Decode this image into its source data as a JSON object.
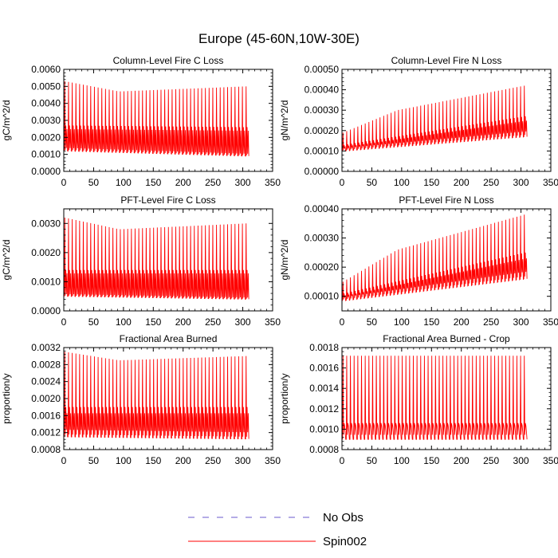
{
  "figure": {
    "title": "Europe (45-60N,10W-30E)"
  },
  "legend": {
    "entries": [
      {
        "label": "No Obs",
        "color": "#6a5acd",
        "style": "dashed"
      },
      {
        "label": "Spin002",
        "color": "#ff0000",
        "style": "solid"
      }
    ]
  },
  "chart_data": [
    {
      "type": "line",
      "title": "Column-Level Fire C Loss",
      "xlabel": "",
      "ylabel": "gC/m^2/d",
      "xlim": [
        0,
        350
      ],
      "ylim": [
        0,
        0.006
      ],
      "x_ticks": [
        0,
        50,
        100,
        150,
        200,
        250,
        300,
        350
      ],
      "y_ticks": [
        0.0,
        0.001,
        0.002,
        0.003,
        0.004,
        0.005,
        0.006
      ],
      "y_tick_labels": [
        "0.0000",
        "0.0010",
        "0.0020",
        "0.0030",
        "0.0040",
        "0.0050",
        "0.0060"
      ],
      "series": [
        {
          "name": "Spin002",
          "color": "#ff0000",
          "period": 6.2,
          "x_start": 1,
          "x_end": 306,
          "peak_start": 0.0053,
          "peak_mid": 0.0047,
          "peak_end": 0.005,
          "mid_start": 0.0027,
          "mid_end": 0.0026,
          "base_start": 0.0012,
          "base_end": 0.0009
        }
      ]
    },
    {
      "type": "line",
      "title": "Column-Level Fire N Loss",
      "xlabel": "",
      "ylabel": "gN/m^2/d",
      "xlim": [
        0,
        350
      ],
      "ylim": [
        0,
        0.0005
      ],
      "x_ticks": [
        0,
        50,
        100,
        150,
        200,
        250,
        300,
        350
      ],
      "y_ticks": [
        0.0,
        0.0001,
        0.0002,
        0.0003,
        0.0004,
        0.0005
      ],
      "y_tick_labels": [
        "0.00000",
        "0.00010",
        "0.00020",
        "0.00030",
        "0.00040",
        "0.00050"
      ],
      "series": [
        {
          "name": "Spin002",
          "color": "#ff0000",
          "period": 6.2,
          "x_start": 1,
          "x_end": 306,
          "peak_start": 0.00019,
          "peak_mid": 0.0003,
          "peak_end": 0.00042,
          "mid_start": 0.00013,
          "mid_end": 0.00027,
          "base_start": 0.0001,
          "base_end": 0.00017
        }
      ]
    },
    {
      "type": "line",
      "title": "PFT-Level Fire C Loss",
      "xlabel": "",
      "ylabel": "gC/m^2/d",
      "xlim": [
        0,
        350
      ],
      "ylim": [
        0,
        0.0035
      ],
      "x_ticks": [
        0,
        50,
        100,
        150,
        200,
        250,
        300,
        350
      ],
      "y_ticks": [
        0.0,
        0.001,
        0.002,
        0.003
      ],
      "y_tick_labels": [
        "0.0000",
        "0.0010",
        "0.0020",
        "0.0030"
      ],
      "series": [
        {
          "name": "Spin002",
          "color": "#ff0000",
          "period": 6.2,
          "x_start": 1,
          "x_end": 306,
          "peak_start": 0.0032,
          "peak_mid": 0.0028,
          "peak_end": 0.003,
          "mid_start": 0.0014,
          "mid_end": 0.0014,
          "base_start": 0.0005,
          "base_end": 0.0004
        }
      ]
    },
    {
      "type": "line",
      "title": "PFT-Level Fire N Loss",
      "xlabel": "",
      "ylabel": "gN/m^2/d",
      "xlim": [
        0,
        350
      ],
      "ylim": [
        5e-05,
        0.0004
      ],
      "x_ticks": [
        0,
        50,
        100,
        150,
        200,
        250,
        300,
        350
      ],
      "y_ticks": [
        0.0001,
        0.0002,
        0.0003,
        0.0004
      ],
      "y_tick_labels": [
        "0.00010",
        "0.00020",
        "0.00030",
        "0.00040"
      ],
      "series": [
        {
          "name": "Spin002",
          "color": "#ff0000",
          "period": 6.2,
          "x_start": 1,
          "x_end": 306,
          "peak_start": 0.00015,
          "peak_mid": 0.00026,
          "peak_end": 0.00038,
          "mid_start": 0.00011,
          "mid_end": 0.00025,
          "base_start": 8.5e-05,
          "base_end": 0.00016
        }
      ]
    },
    {
      "type": "line",
      "title": "Fractional Area Burned",
      "xlabel": "",
      "ylabel": "proportion/y",
      "xlim": [
        0,
        350
      ],
      "ylim": [
        0.0008,
        0.0032
      ],
      "x_ticks": [
        0,
        50,
        100,
        150,
        200,
        250,
        300,
        350
      ],
      "y_ticks": [
        0.0008,
        0.0012,
        0.0016,
        0.002,
        0.0024,
        0.0028,
        0.0032
      ],
      "y_tick_labels": [
        "0.0008",
        "0.0012",
        "0.0016",
        "0.0020",
        "0.0024",
        "0.0028",
        "0.0032"
      ],
      "series": [
        {
          "name": "Spin002",
          "color": "#ff0000",
          "period": 6.2,
          "x_start": 1,
          "x_end": 306,
          "peak_start": 0.0031,
          "peak_mid": 0.0029,
          "peak_end": 0.003,
          "mid_start": 0.0018,
          "mid_end": 0.0018,
          "base_start": 0.0011,
          "base_end": 0.00105
        }
      ]
    },
    {
      "type": "line",
      "title": "Fractional Area Burned - Crop",
      "xlabel": "",
      "ylabel": "proportion/y",
      "xlim": [
        0,
        350
      ],
      "ylim": [
        0.0008,
        0.0018
      ],
      "x_ticks": [
        0,
        50,
        100,
        150,
        200,
        250,
        300,
        350
      ],
      "y_ticks": [
        0.0008,
        0.001,
        0.0012,
        0.0014,
        0.0016,
        0.0018
      ],
      "y_tick_labels": [
        "0.0008",
        "0.0010",
        "0.0012",
        "0.0014",
        "0.0016",
        "0.0018"
      ],
      "series": [
        {
          "name": "Spin002",
          "color": "#ff0000",
          "period": 6.2,
          "x_start": 1,
          "x_end": 306,
          "peak_start": 0.00172,
          "peak_mid": 0.00172,
          "peak_end": 0.00172,
          "mid_start": 0.00106,
          "mid_end": 0.00106,
          "base_start": 0.0009,
          "base_end": 0.0009
        }
      ]
    }
  ]
}
